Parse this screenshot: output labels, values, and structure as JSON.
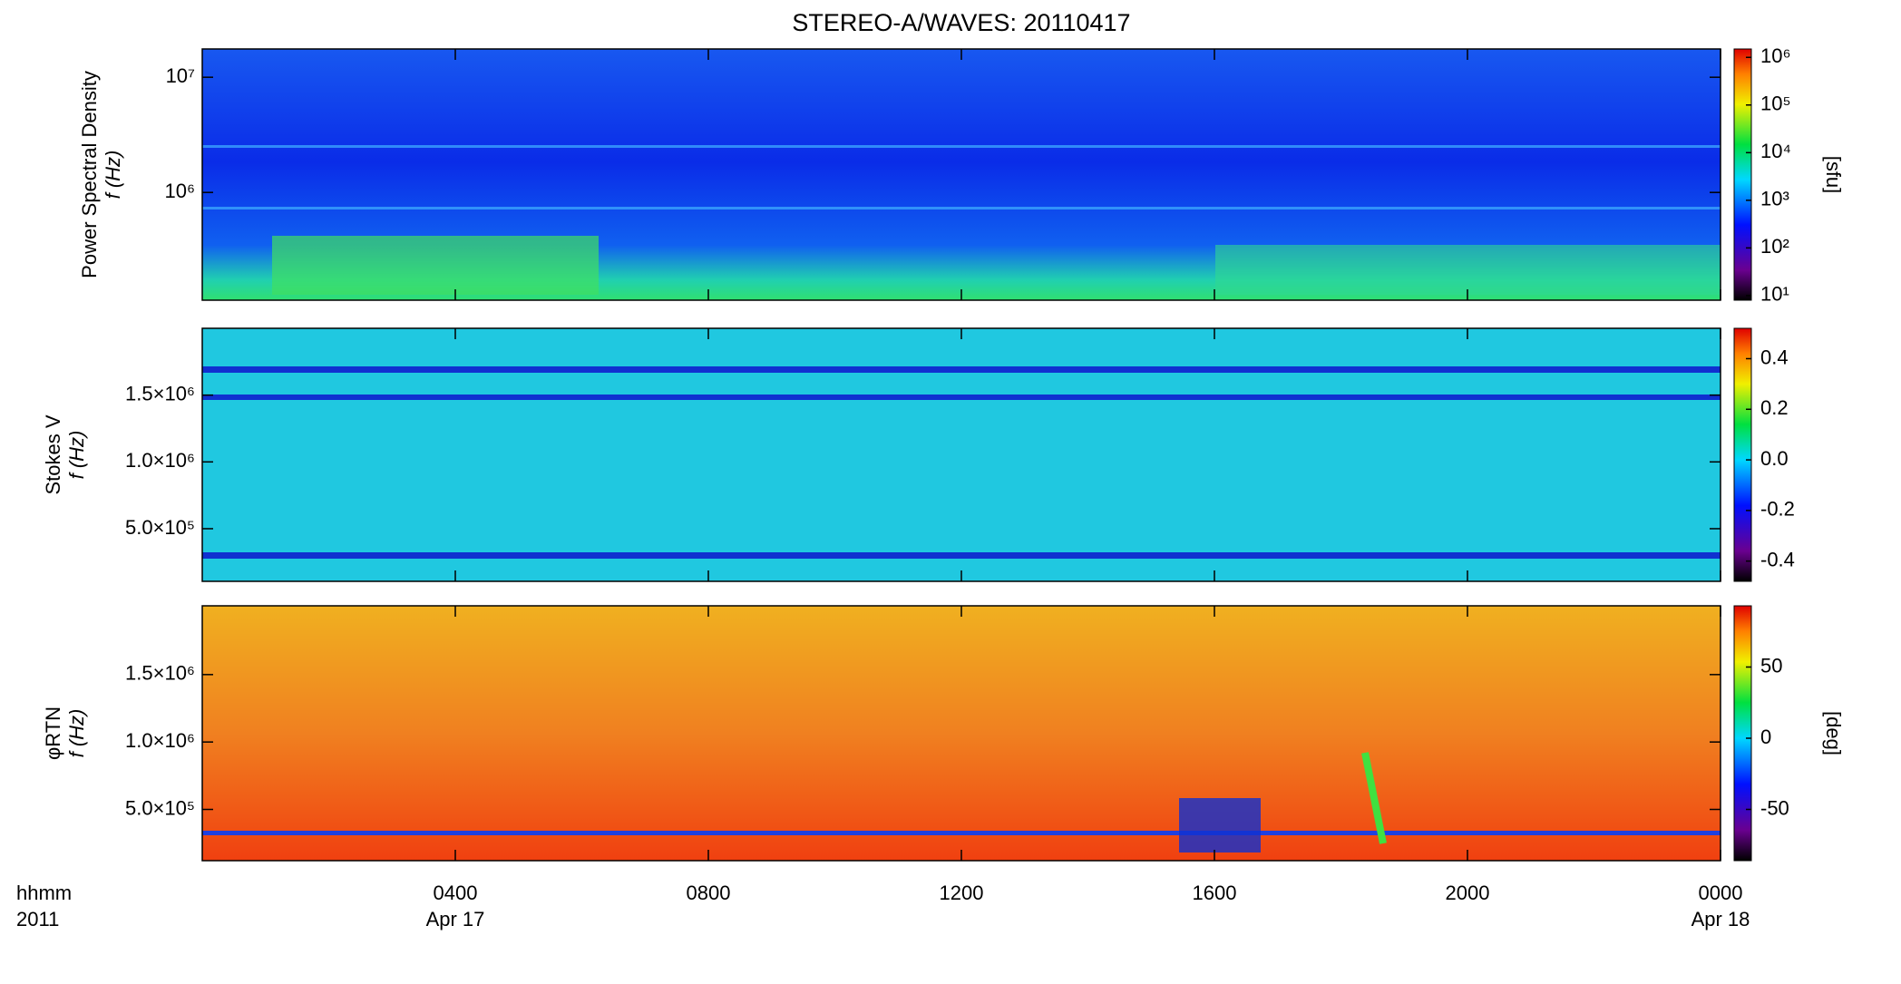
{
  "chart_data": [
    {
      "type": "spectrogram",
      "title": "STEREO-A/WAVES: 20110417",
      "ylabel": [
        "Power Spectral Density",
        "f (Hz)"
      ],
      "yscale": "log",
      "ylim": [
        116000,
        17600000
      ],
      "yticks": [
        {
          "value": 1000000,
          "label": "10⁶"
        },
        {
          "value": 10000000,
          "label": "10⁷"
        }
      ],
      "xlim": [
        0,
        24
      ],
      "colorbar": {
        "colormap": "rainbow",
        "scale": "log",
        "lim": [
          8,
          1500000
        ],
        "label": "[sfu]",
        "ticks": [
          {
            "value": 10,
            "label": "10¹"
          },
          {
            "value": 100,
            "label": "10²"
          },
          {
            "value": 1000,
            "label": "10³"
          },
          {
            "value": 10000,
            "label": "10⁴"
          },
          {
            "value": 100000,
            "label": "10⁵"
          },
          {
            "value": 1000000,
            "label": "10⁶"
          }
        ]
      }
    },
    {
      "type": "spectrogram",
      "ylabel": [
        "Stokes V",
        "f (Hz)"
      ],
      "yscale": "linear",
      "ylim": [
        106000,
        2000000
      ],
      "yticks": [
        {
          "value": 500000,
          "label": "5.0×10⁵"
        },
        {
          "value": 1000000,
          "label": "1.0×10⁶"
        },
        {
          "value": 1500000,
          "label": "1.5×10⁶"
        }
      ],
      "xlim": [
        0,
        24
      ],
      "colorbar": {
        "colormap": "rainbow",
        "scale": "linear",
        "lim": [
          -0.48,
          0.52
        ],
        "ticks": [
          -0.4,
          -0.2,
          {
            "value": 0,
            "label": "0.0"
          },
          0.2,
          0.4
        ]
      }
    },
    {
      "type": "spectrogram",
      "ylabel": [
        "φRTN",
        "f (Hz)"
      ],
      "yscale": "linear",
      "ylim": [
        120000,
        2010000
      ],
      "yticks": [
        {
          "value": 500000,
          "label": "5.0×10⁵"
        },
        {
          "value": 1000000,
          "label": "1.0×10⁶"
        },
        {
          "value": 1500000,
          "label": "1.5×10⁶"
        }
      ],
      "xlim": [
        0,
        24
      ],
      "xticks": [
        {
          "value": 4,
          "label": "0400"
        },
        {
          "value": 8,
          "label": "0800"
        },
        {
          "value": 12,
          "label": "1200"
        },
        {
          "value": 16,
          "label": "1600"
        },
        {
          "value": 20,
          "label": "2000"
        },
        {
          "value": 24,
          "label": "0000"
        }
      ],
      "xsublabels": [
        {
          "value": 4,
          "label": "Apr 17"
        },
        {
          "value": 24,
          "label": "Apr 18"
        }
      ],
      "x_axis_label": [
        "hhmm",
        "2011"
      ],
      "colorbar": {
        "colormap": "rainbow",
        "scale": "linear",
        "lim": [
          -86,
          93
        ],
        "label": "[deg]",
        "ticks": [
          -50,
          0,
          50
        ]
      }
    }
  ]
}
